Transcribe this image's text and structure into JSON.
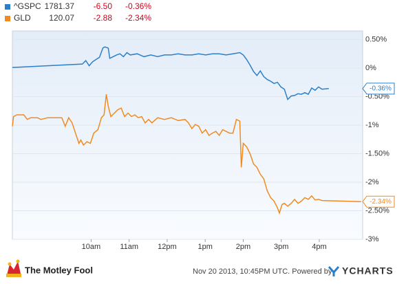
{
  "chart_data": {
    "type": "line",
    "series": [
      {
        "name": "^GSPC",
        "price": "1781.37",
        "change": "-6.50",
        "change_pct": "-0.36%",
        "color": "#2a7fca",
        "x": [
          7.93,
          9.77,
          9.86,
          9.95,
          10.04,
          10.13,
          10.22,
          10.31,
          10.36,
          10.45,
          10.49,
          10.58,
          10.67,
          10.76,
          10.85,
          10.94,
          11.03,
          11.21,
          11.39,
          11.57,
          11.75,
          11.93,
          12.11,
          12.29,
          12.47,
          12.65,
          12.83,
          13.01,
          13.19,
          13.37,
          13.55,
          13.73,
          13.91,
          14.0,
          14.09,
          14.18,
          14.27,
          14.36,
          14.45,
          14.54,
          14.63,
          14.72,
          14.81,
          14.9,
          14.99,
          15.08,
          15.17,
          15.26,
          15.35,
          15.44,
          15.53,
          15.62,
          15.71,
          15.8,
          15.89,
          15.98,
          16.07,
          16.25
        ],
        "values": [
          0.01,
          0.07,
          0.13,
          0.04,
          0.11,
          0.15,
          0.19,
          0.35,
          0.37,
          0.35,
          0.17,
          0.2,
          0.23,
          0.25,
          0.2,
          0.27,
          0.23,
          0.25,
          0.2,
          0.23,
          0.2,
          0.23,
          0.23,
          0.25,
          0.23,
          0.23,
          0.25,
          0.23,
          0.25,
          0.25,
          0.23,
          0.25,
          0.27,
          0.23,
          0.15,
          0.05,
          -0.06,
          -0.13,
          -0.05,
          -0.15,
          -0.2,
          -0.23,
          -0.27,
          -0.25,
          -0.33,
          -0.37,
          -0.55,
          -0.49,
          -0.48,
          -0.45,
          -0.46,
          -0.43,
          -0.46,
          -0.35,
          -0.39,
          -0.33,
          -0.37,
          -0.36
        ]
      },
      {
        "name": "GLD",
        "price": "120.07",
        "change": "-2.88",
        "change_pct": "-2.34%",
        "color": "#f28a1e",
        "x": [
          7.93,
          7.96,
          8.05,
          8.23,
          8.32,
          8.41,
          8.59,
          8.68,
          8.86,
          9.05,
          9.23,
          9.32,
          9.41,
          9.5,
          9.59,
          9.68,
          9.73,
          9.8,
          9.89,
          9.98,
          10.07,
          10.18,
          10.27,
          10.34,
          10.4,
          10.45,
          10.52,
          10.61,
          10.7,
          10.79,
          10.88,
          10.97,
          11.06,
          11.15,
          11.24,
          11.33,
          11.42,
          11.51,
          11.6,
          11.75,
          11.93,
          12.11,
          12.29,
          12.47,
          12.56,
          12.65,
          12.74,
          12.83,
          12.92,
          13.01,
          13.1,
          13.19,
          13.28,
          13.37,
          13.46,
          13.55,
          13.64,
          13.73,
          13.82,
          13.91,
          13.95,
          14.0,
          14.09,
          14.18,
          14.27,
          14.36,
          14.45,
          14.54,
          14.63,
          14.72,
          14.81,
          14.9,
          14.95,
          15.02,
          15.08,
          15.17,
          15.26,
          15.35,
          15.44,
          15.53,
          15.62,
          15.71,
          15.8,
          15.89,
          15.98,
          16.07,
          17.1
        ],
        "values": [
          -1.02,
          -0.85,
          -0.82,
          -0.82,
          -0.9,
          -0.87,
          -0.87,
          -0.9,
          -0.87,
          -0.87,
          -0.87,
          -1.02,
          -0.87,
          -0.96,
          -1.14,
          -1.32,
          -1.26,
          -1.35,
          -1.29,
          -1.32,
          -1.14,
          -1.08,
          -0.87,
          -0.82,
          -0.46,
          -0.67,
          -0.85,
          -0.79,
          -0.73,
          -0.7,
          -0.85,
          -0.79,
          -0.85,
          -0.82,
          -0.87,
          -0.85,
          -0.96,
          -0.9,
          -0.96,
          -0.87,
          -0.9,
          -0.87,
          -0.92,
          -0.9,
          -0.96,
          -1.06,
          -0.99,
          -1.02,
          -1.14,
          -1.08,
          -1.18,
          -1.14,
          -1.11,
          -1.18,
          -1.08,
          -1.11,
          -1.14,
          -1.14,
          -0.9,
          -0.93,
          -1.74,
          -1.32,
          -1.38,
          -1.5,
          -1.68,
          -1.74,
          -1.86,
          -1.94,
          -2.15,
          -2.27,
          -2.33,
          -2.45,
          -2.54,
          -2.39,
          -2.37,
          -2.42,
          -2.37,
          -2.3,
          -2.37,
          -2.33,
          -2.27,
          -2.3,
          -2.24,
          -2.31,
          -2.3,
          -2.32,
          -2.34
        ]
      }
    ],
    "xlim": [
      7.93,
      17.14
    ],
    "xticks": [
      {
        "value": 10,
        "label": "10am"
      },
      {
        "value": 11,
        "label": "11am"
      },
      {
        "value": 12,
        "label": "12pm"
      },
      {
        "value": 13,
        "label": "1pm"
      },
      {
        "value": 14,
        "label": "2pm"
      },
      {
        "value": 15,
        "label": "3pm"
      },
      {
        "value": 16,
        "label": "4pm"
      }
    ],
    "ylim": [
      -3,
      0.65
    ],
    "yticks": [
      {
        "value": 0.5,
        "label": "0.50%"
      },
      {
        "value": 0,
        "label": "0%"
      },
      {
        "value": -0.5,
        "label": "-0.50%"
      },
      {
        "value": -1,
        "label": "-1%"
      },
      {
        "value": -1.5,
        "label": "-1.50%"
      },
      {
        "value": -2,
        "label": "-2%"
      },
      {
        "value": -2.5,
        "label": "-2.50%"
      },
      {
        "value": -3,
        "label": "-3%"
      }
    ],
    "grid": true,
    "footer": {
      "brand": "The Motley Fool",
      "timestamp": "Nov 20 2013, 10:45PM UTC. Powered by",
      "provider": "YCHARTS"
    }
  }
}
